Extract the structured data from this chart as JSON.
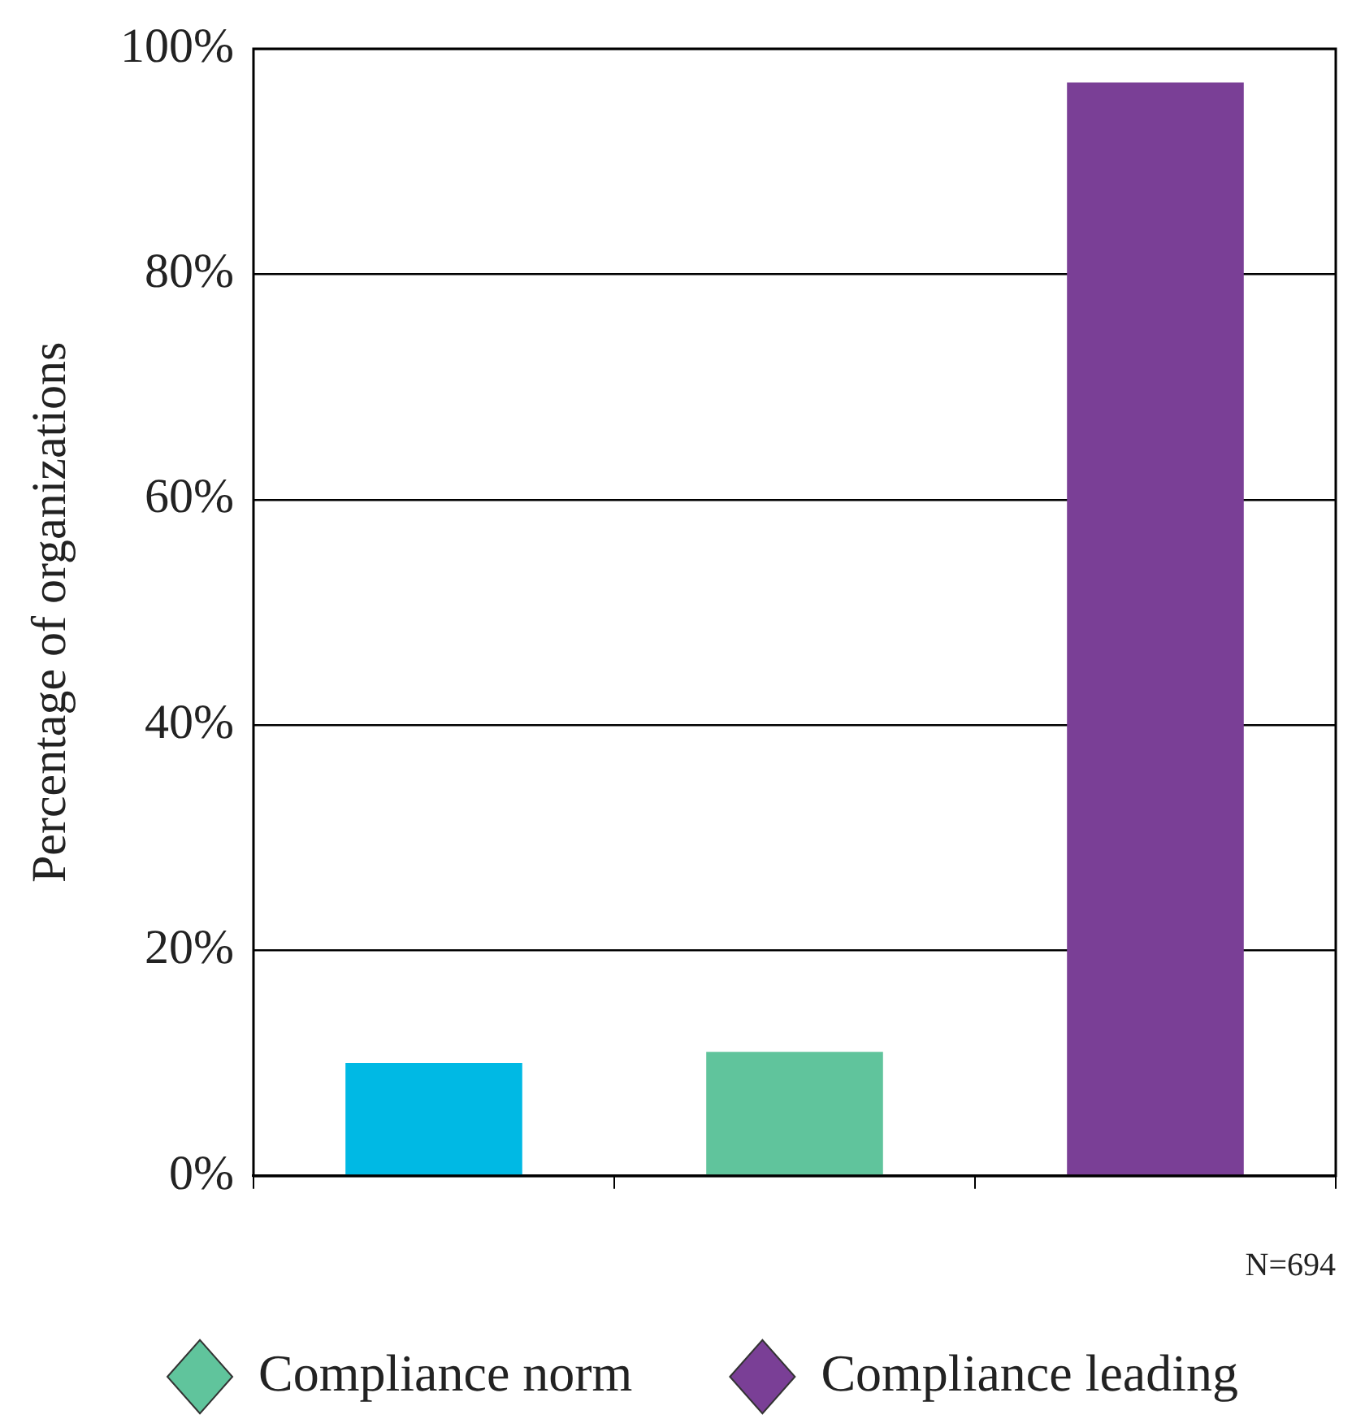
{
  "chart_data": {
    "type": "bar",
    "ylabel": "Percentage of organizations",
    "categories": [
      null,
      null,
      null
    ],
    "series": [
      {
        "color": "#00b9e4",
        "values": [
          10,
          null,
          null
        ]
      },
      {
        "name": "Compliance norm",
        "color": "#60c49c",
        "values": [
          null,
          11,
          null
        ]
      },
      {
        "name": "Compliance leading",
        "color": "#7a3f96",
        "values": [
          null,
          null,
          97
        ]
      }
    ],
    "ylim": [
      0,
      100
    ],
    "yticks": [
      {
        "value": 0,
        "label": "0%"
      },
      {
        "value": 20,
        "label": "20%"
      },
      {
        "value": 40,
        "label": "40%"
      },
      {
        "value": 60,
        "label": "60%"
      },
      {
        "value": 80,
        "label": "80%"
      },
      {
        "value": 100,
        "label": "100%"
      }
    ],
    "grid": "y",
    "legend": "bottom",
    "marker": "diamond",
    "annotations": [
      "N=694"
    ]
  }
}
